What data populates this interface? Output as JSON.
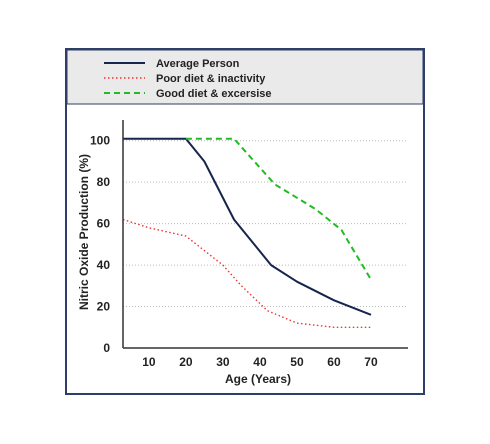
{
  "colors": {
    "frame": "#2d3f66",
    "legend_bg": "#eaeaea",
    "average": "#16254d",
    "poor": "#ee3333",
    "good": "#22bb22",
    "grid": "#bbbbbb"
  },
  "chart_data": {
    "type": "line",
    "title": "",
    "xlabel": "Age (Years)",
    "ylabel": "Nitric Oxide Production (%)",
    "xlim": [
      3,
      80
    ],
    "ylim": [
      0,
      110
    ],
    "xticks": [
      10,
      20,
      30,
      40,
      50,
      60,
      70
    ],
    "yticks": [
      0,
      20,
      40,
      60,
      80,
      100
    ],
    "grid": "horizontal dotted",
    "legend_position": "top",
    "series": [
      {
        "name": "Average Person",
        "color": "#16254d",
        "dash": "solid",
        "points": [
          [
            3,
            101
          ],
          [
            20,
            101
          ],
          [
            25,
            90
          ],
          [
            33,
            62
          ],
          [
            43,
            40
          ],
          [
            50,
            32
          ],
          [
            60,
            23
          ],
          [
            70,
            16
          ]
        ]
      },
      {
        "name": "Poor diet & inactivity",
        "color": "#ee3333",
        "dash": "dotted",
        "points": [
          [
            3,
            62
          ],
          [
            10,
            58
          ],
          [
            20,
            54
          ],
          [
            30,
            40
          ],
          [
            35,
            30
          ],
          [
            42,
            18
          ],
          [
            50,
            12
          ],
          [
            60,
            10
          ],
          [
            70,
            10
          ]
        ]
      },
      {
        "name": "Good diet & excersise",
        "color": "#22bb22",
        "dash": "dashed",
        "points": [
          [
            20,
            101
          ],
          [
            33,
            101
          ],
          [
            44,
            79
          ],
          [
            55,
            67
          ],
          [
            62,
            57
          ],
          [
            70,
            33
          ]
        ]
      }
    ]
  }
}
